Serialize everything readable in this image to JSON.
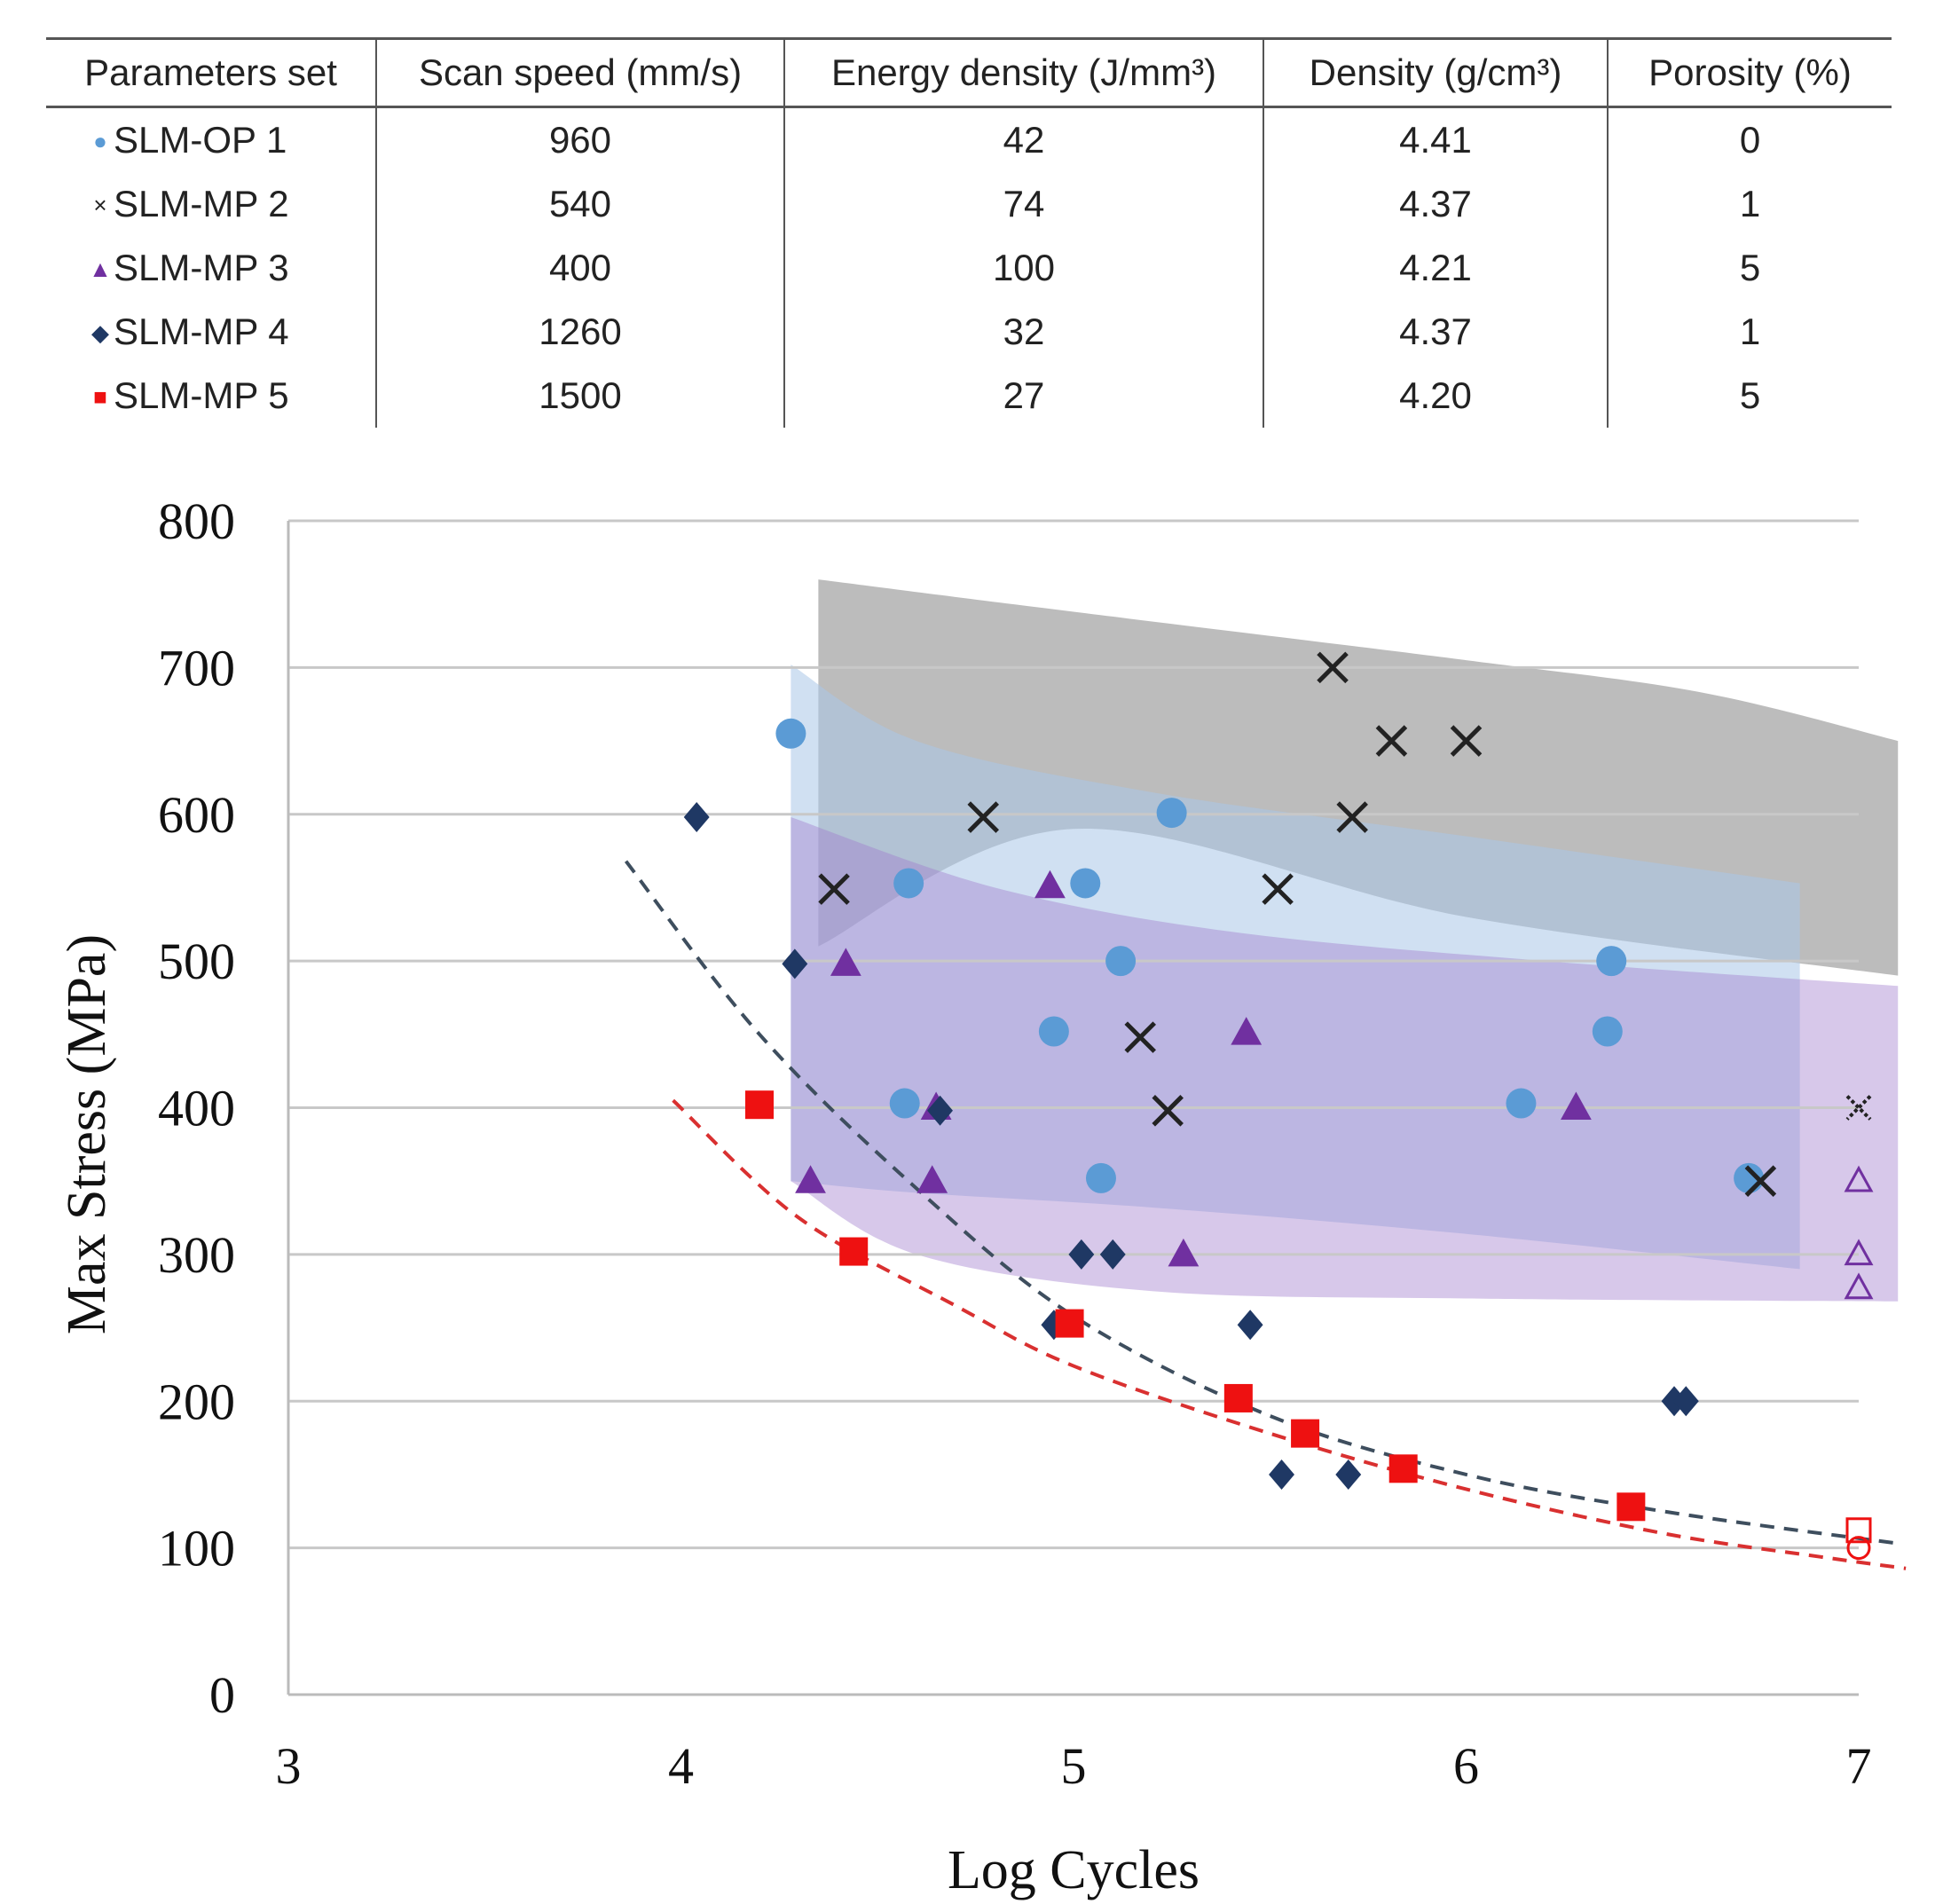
{
  "table": {
    "headers": [
      "Parameters set",
      "Scan speed (mm/s)",
      "Energy density (J/mm³)",
      "Density (g/cm³)",
      "Porosity (%)"
    ],
    "rows": [
      {
        "marker": "●",
        "marker_color": "#5b9bd5",
        "set": "SLM-OP 1",
        "speed": "960",
        "energy": "42",
        "density": "4.41",
        "porosity": "0"
      },
      {
        "marker": "×",
        "marker_color": "#222222",
        "set": "SLM-MP 2",
        "speed": "540",
        "energy": "74",
        "density": "4.37",
        "porosity": "1"
      },
      {
        "marker": "▲",
        "marker_color": "#7030a0",
        "set": "SLM-MP 3",
        "speed": "400",
        "energy": "100",
        "density": "4.21",
        "porosity": "5"
      },
      {
        "marker": "◆",
        "marker_color": "#1f3864",
        "set": "SLM-MP 4",
        "speed": "1260",
        "energy": "32",
        "density": "4.37",
        "porosity": "1"
      },
      {
        "marker": "■",
        "marker_color": "#ee1111",
        "set": "SLM-MP 5",
        "speed": "1500",
        "energy": "27",
        "density": "4.20",
        "porosity": "5"
      }
    ]
  },
  "chart_data": {
    "type": "scatter",
    "title": "",
    "xlabel": "Log Cycles",
    "ylabel": "Max Stress (MPa)",
    "xlim": [
      3,
      7
    ],
    "ylim": [
      0,
      800
    ],
    "xticks": [
      3,
      4,
      5,
      6,
      7
    ],
    "yticks": [
      0,
      100,
      200,
      300,
      400,
      500,
      600,
      700,
      800
    ],
    "grid": true,
    "series": [
      {
        "name": "SLM-OP 1",
        "marker": "circle",
        "color": "#5b9bd5",
        "points": [
          [
            4.28,
            655
          ],
          [
            4.58,
            553
          ],
          [
            4.57,
            403
          ],
          [
            4.95,
            452
          ],
          [
            5.03,
            553
          ],
          [
            5.07,
            352
          ],
          [
            5.12,
            500
          ],
          [
            5.25,
            601
          ],
          [
            6.14,
            403
          ],
          [
            6.36,
            452
          ],
          [
            6.37,
            500
          ],
          [
            6.72,
            352
          ]
        ]
      },
      {
        "name": "SLM-MP 2",
        "marker": "x",
        "color": "#222222",
        "points": [
          [
            5.66,
            700
          ],
          [
            5.81,
            650
          ],
          [
            6.0,
            650
          ],
          [
            4.77,
            598
          ],
          [
            5.71,
            598
          ],
          [
            4.39,
            549
          ],
          [
            5.52,
            549
          ],
          [
            5.17,
            448
          ],
          [
            5.24,
            398
          ],
          [
            6.75,
            350
          ]
        ]
      },
      {
        "name": "SLM-MP 3",
        "marker": "triangle",
        "color": "#7030a0",
        "points": [
          [
            4.94,
            551
          ],
          [
            4.42,
            498
          ],
          [
            5.44,
            451
          ],
          [
            4.65,
            400
          ],
          [
            6.28,
            400
          ],
          [
            4.33,
            350
          ],
          [
            4.64,
            350
          ],
          [
            5.28,
            300
          ]
        ]
      },
      {
        "name": "SLM-MP 4",
        "marker": "diamond",
        "color": "#1f3864",
        "points": [
          [
            4.04,
            598
          ],
          [
            4.29,
            498
          ],
          [
            4.66,
            398
          ],
          [
            5.02,
            300
          ],
          [
            5.1,
            300
          ],
          [
            4.95,
            252
          ],
          [
            5.45,
            252
          ],
          [
            6.53,
            200
          ],
          [
            6.56,
            200
          ],
          [
            5.53,
            150
          ],
          [
            5.7,
            150
          ]
        ]
      },
      {
        "name": "SLM-MP 5",
        "marker": "square",
        "color": "#ee1111",
        "points": [
          [
            4.2,
            402
          ],
          [
            4.44,
            302
          ],
          [
            4.99,
            253
          ],
          [
            5.42,
            202
          ],
          [
            5.59,
            178
          ],
          [
            5.84,
            154
          ],
          [
            6.42,
            128
          ]
        ]
      },
      {
        "name": "Run-outs",
        "marker": "open",
        "color": "#7030a0",
        "points": [
          [
            7.0,
            400,
            "x"
          ],
          [
            7.0,
            350,
            "triangle"
          ],
          [
            7.0,
            300,
            "triangle"
          ],
          [
            7.0,
            277,
            "triangle"
          ],
          [
            7.0,
            112,
            "square"
          ],
          [
            7.0,
            100,
            "circle"
          ]
        ]
      }
    ],
    "bands": [
      {
        "name": "SLM-MP 2 band",
        "color": "#8c8c8c",
        "opacity": 0.58,
        "x_start": 4.35,
        "x_end": 7.1,
        "upper": [
          [
            4.35,
            760
          ],
          [
            5.0,
            738
          ],
          [
            6.0,
            705
          ],
          [
            6.6,
            683
          ],
          [
            7.1,
            650
          ]
        ],
        "lower": [
          [
            4.35,
            510
          ],
          [
            5.0,
            590
          ],
          [
            6.0,
            530
          ],
          [
            7.1,
            490
          ]
        ]
      },
      {
        "name": "SLM-OP 1 band",
        "color": "#a9c6e8",
        "opacity": 0.55,
        "x_start": 4.28,
        "x_end": 6.85,
        "upper": [
          [
            4.28,
            702
          ],
          [
            4.6,
            650
          ],
          [
            5.2,
            615
          ],
          [
            6.0,
            585
          ],
          [
            6.85,
            553
          ]
        ],
        "lower": [
          [
            4.28,
            350
          ],
          [
            4.6,
            342
          ],
          [
            5.2,
            332
          ],
          [
            6.0,
            314
          ],
          [
            6.85,
            290
          ]
        ]
      },
      {
        "name": "SLM-MP 3 band",
        "color": "#a07cce",
        "opacity": 0.42,
        "x_start": 4.28,
        "x_end": 7.1,
        "upper": [
          [
            4.28,
            598
          ],
          [
            4.8,
            550
          ],
          [
            5.4,
            520
          ],
          [
            6.2,
            500
          ],
          [
            7.1,
            483
          ]
        ],
        "lower": [
          [
            4.28,
            350
          ],
          [
            4.6,
            300
          ],
          [
            5.2,
            275
          ],
          [
            6.0,
            270
          ],
          [
            7.1,
            268
          ]
        ]
      }
    ],
    "trendlines": [
      {
        "name": "SLM-MP 4 fit",
        "color": "#3e4e5e",
        "style": "dashed",
        "points": [
          [
            3.86,
            568
          ],
          [
            4.2,
            450
          ],
          [
            4.6,
            345
          ],
          [
            5.0,
            258
          ],
          [
            5.5,
            190
          ],
          [
            6.0,
            150
          ],
          [
            6.5,
            125
          ],
          [
            7.1,
            103
          ]
        ]
      },
      {
        "name": "SLM-MP 5 fit",
        "color": "#d93030",
        "style": "dashed",
        "points": [
          [
            3.98,
            405
          ],
          [
            4.3,
            325
          ],
          [
            4.7,
            265
          ],
          [
            5.0,
            224
          ],
          [
            5.5,
            178
          ],
          [
            6.0,
            140
          ],
          [
            6.5,
            110
          ],
          [
            6.9,
            94
          ],
          [
            7.12,
            86
          ]
        ]
      }
    ]
  }
}
